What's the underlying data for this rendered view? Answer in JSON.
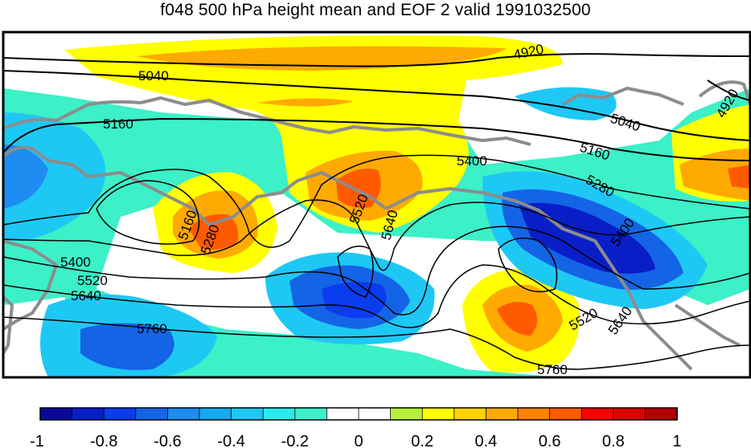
{
  "chart_data": {
    "type": "heatmap",
    "title": "f048 500 hPa height mean and EOF 2 valid 1991032500",
    "contour_levels": [
      4920,
      5040,
      5160,
      5280,
      5400,
      5520,
      5640,
      5760
    ],
    "contour_labels": [
      {
        "text": "4920"
      },
      {
        "text": "4920"
      },
      {
        "text": "5040"
      },
      {
        "text": "5040"
      },
      {
        "text": "5160"
      },
      {
        "text": "5160"
      },
      {
        "text": "5160"
      },
      {
        "text": "5280"
      },
      {
        "text": "5280"
      },
      {
        "text": "5400"
      },
      {
        "text": "5400"
      },
      {
        "text": "5400"
      },
      {
        "text": "5520"
      },
      {
        "text": "5520"
      },
      {
        "text": "5520"
      },
      {
        "text": "5640"
      },
      {
        "text": "5640"
      },
      {
        "text": "5640"
      },
      {
        "text": "5760"
      },
      {
        "text": "5760"
      }
    ],
    "colorbar": {
      "min": -1,
      "max": 1,
      "tick_labels": [
        "-1",
        "-0.8",
        "-0.6",
        "-0.4",
        "-0.2",
        "0",
        "0.2",
        "0.4",
        "0.6",
        "0.8",
        "1"
      ],
      "colors": [
        "#0a0a9a",
        "#0a1ec8",
        "#0a3cf0",
        "#1464e6",
        "#1e8cf0",
        "#14aaf0",
        "#1ec8f5",
        "#28ebeb",
        "#3cf0c8",
        "#ffffff",
        "#ffffff",
        "#b4f03c",
        "#ffff00",
        "#ffd200",
        "#ffaa00",
        "#ff8200",
        "#ff5a00",
        "#ff0000",
        "#dc0000",
        "#b40000"
      ]
    }
  }
}
